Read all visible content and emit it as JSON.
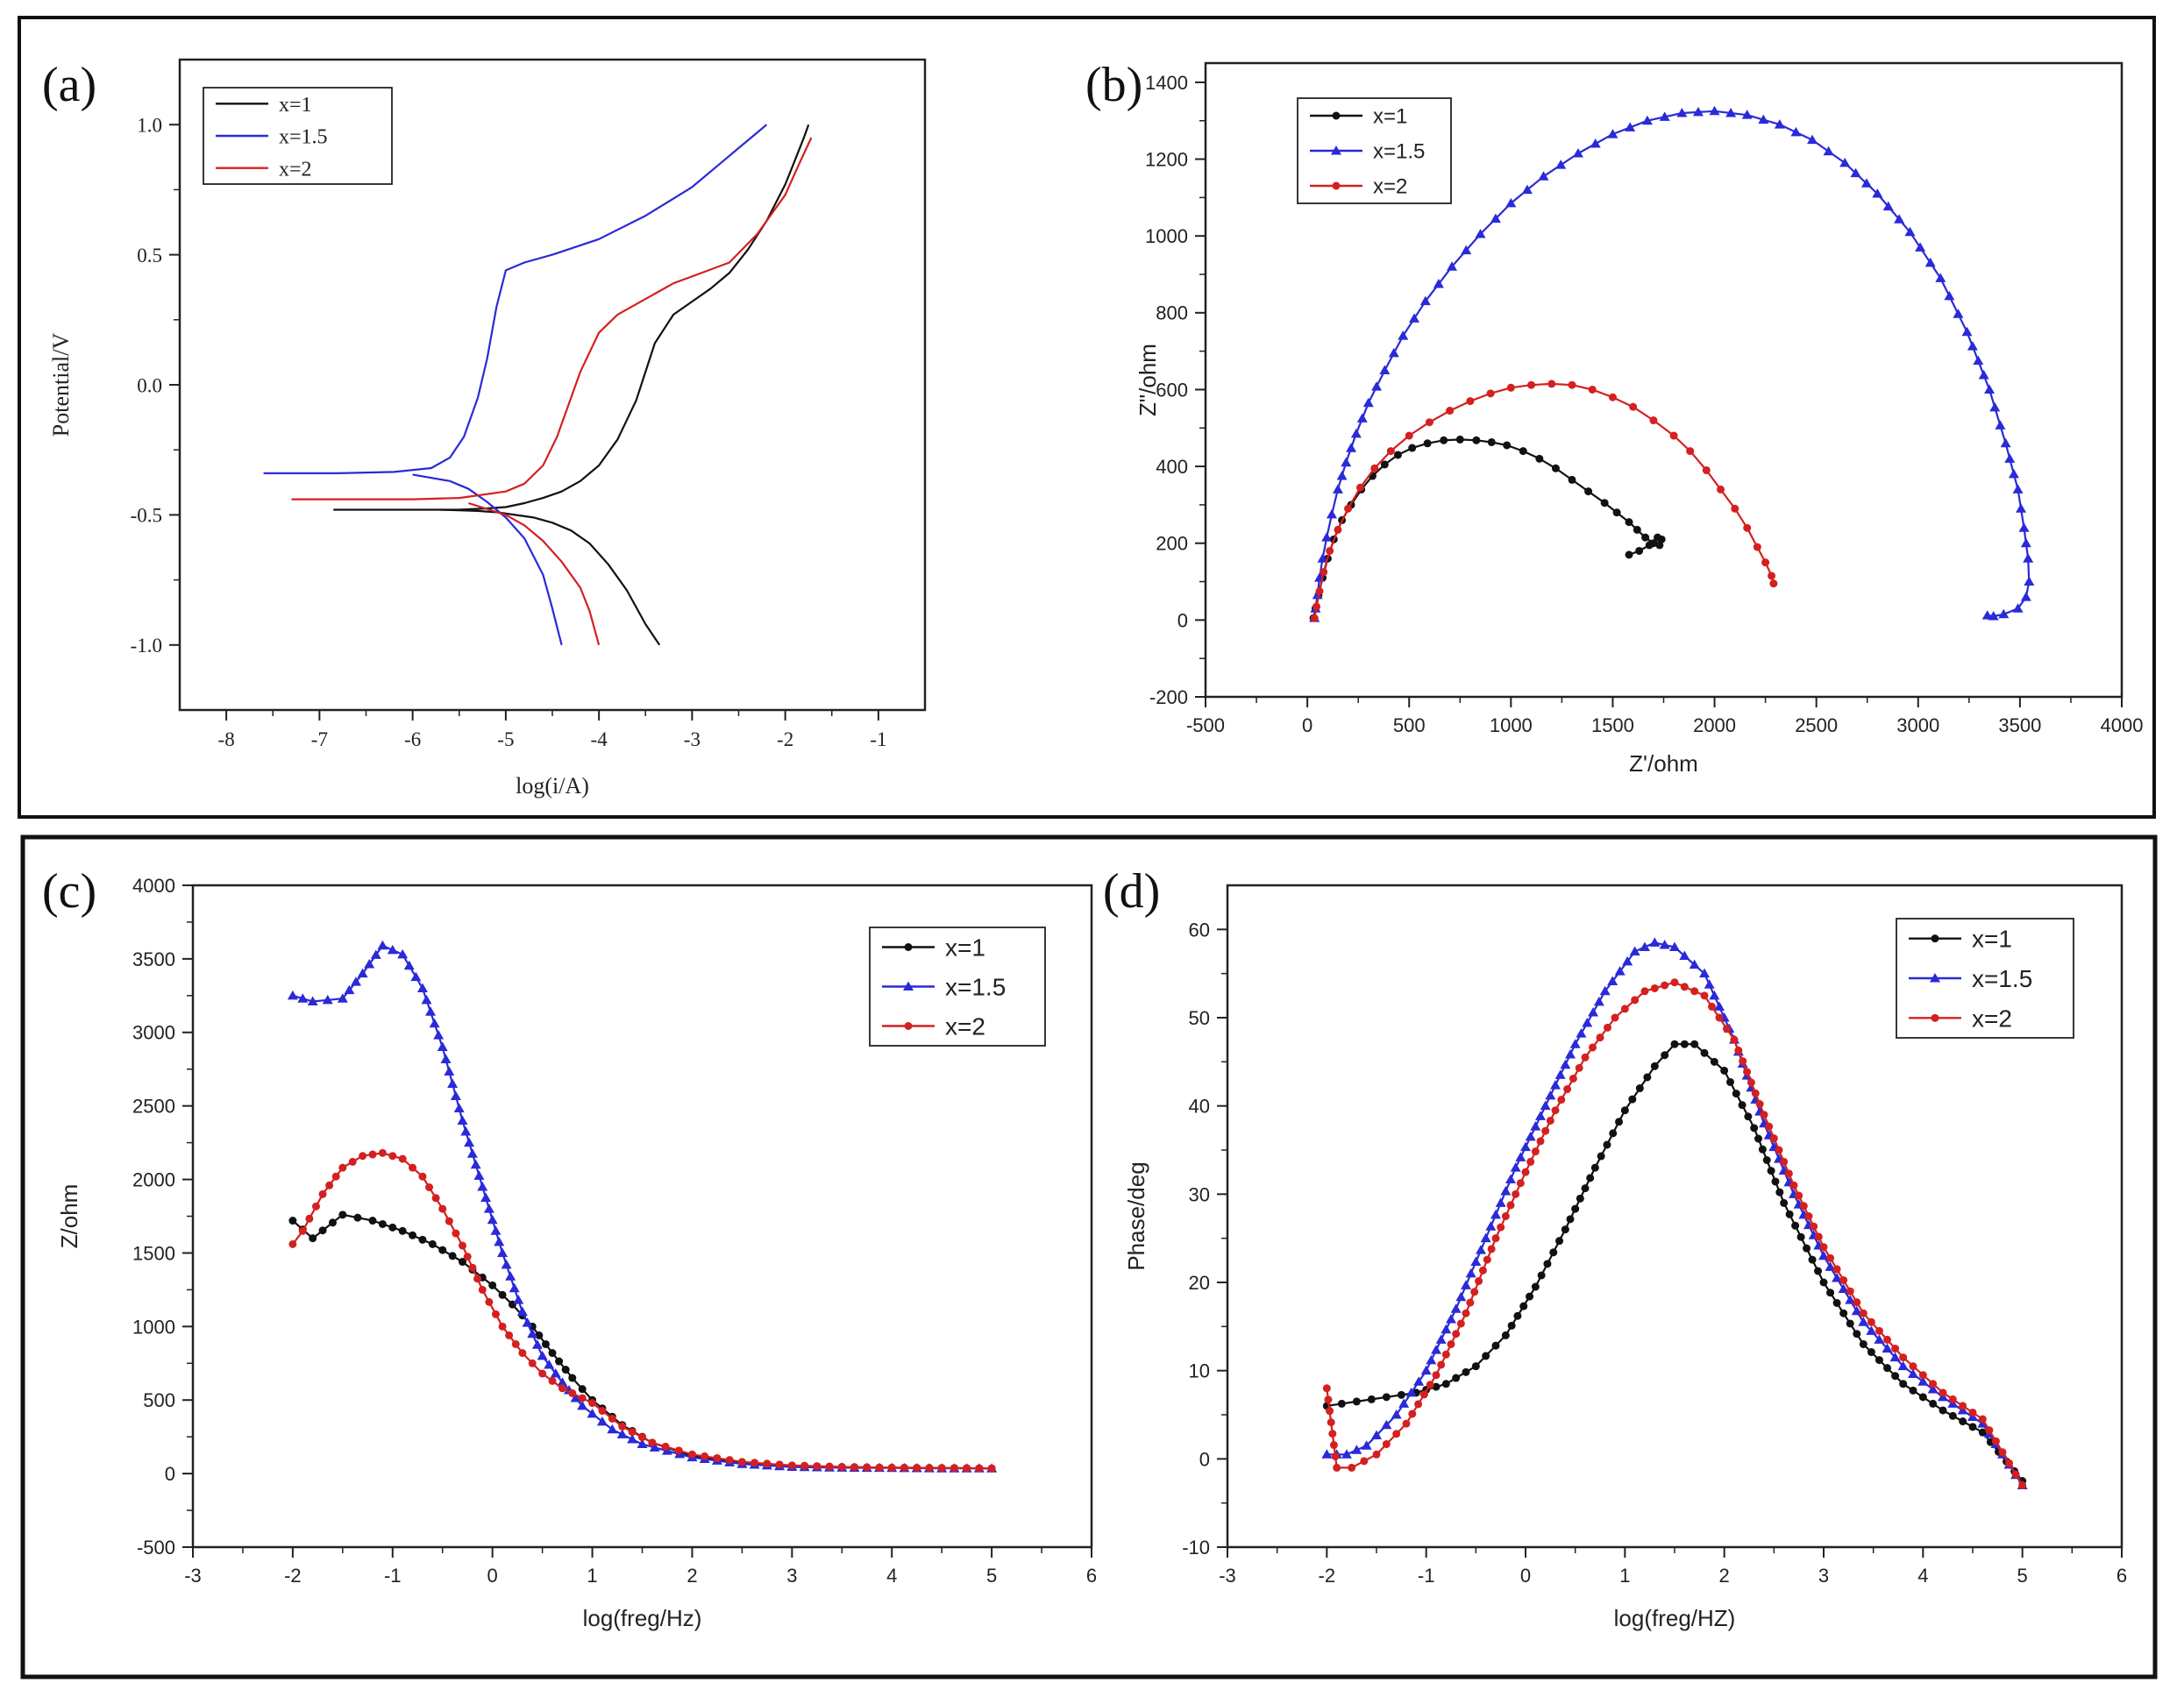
{
  "colors": {
    "x1": "#111111",
    "x15": "#2a2ad8",
    "x2": "#d42020",
    "axis": "#222222"
  },
  "chart_data": [
    {
      "id": "a",
      "type": "line",
      "panel_label": "(a)",
      "xlabel": "log(i/A)",
      "ylabel": "Potential/V",
      "xlim": [
        -8.5,
        -0.5
      ],
      "ylim": [
        -1.25,
        1.25
      ],
      "xticks": [
        -8,
        -7,
        -6,
        -5,
        -4,
        -3,
        -2,
        -1
      ],
      "xtick_labels": [
        "-8",
        "-7",
        "-6",
        "-5",
        "-4",
        "-3",
        "-2",
        "-1"
      ],
      "yticks": [
        -1.0,
        -0.5,
        0.0,
        0.5,
        1.0
      ],
      "ytick_labels": [
        "-1.0",
        "-0.5",
        "0.0",
        "0.5",
        "1.0"
      ],
      "legend_position": "top-left",
      "markers": false,
      "series": [
        {
          "name": "x=1",
          "color": "#111111",
          "marker": "none",
          "x": [
            -6.85,
            -6.0,
            -5.5,
            -5.2,
            -5.0,
            -4.8,
            -4.6,
            -4.4,
            -4.2,
            -4.0,
            -3.8,
            -3.6,
            -3.4,
            -3.2,
            -3.0,
            -2.8,
            -2.6,
            -2.4,
            -2.2,
            -2.0,
            -1.9,
            -1.8,
            -1.75,
            null,
            -5.7,
            -5.3,
            -5.1,
            -4.9,
            -4.7,
            -4.5,
            -4.3,
            -4.1,
            -3.9,
            -3.7,
            -3.5,
            -3.35
          ],
          "y": [
            -0.48,
            -0.48,
            -0.48,
            -0.475,
            -0.47,
            -0.455,
            -0.435,
            -0.41,
            -0.37,
            -0.31,
            -0.21,
            -0.06,
            0.16,
            0.27,
            0.32,
            0.37,
            0.43,
            0.52,
            0.63,
            0.77,
            0.86,
            0.95,
            1.0,
            null,
            -0.48,
            -0.485,
            -0.49,
            -0.5,
            -0.51,
            -0.53,
            -0.56,
            -0.61,
            -0.69,
            -0.79,
            -0.92,
            -1.0
          ]
        },
        {
          "name": "x=1.5",
          "color": "#2a2ad8",
          "marker": "none",
          "x": [
            -7.6,
            -6.8,
            -6.2,
            -5.8,
            -5.6,
            -5.45,
            -5.3,
            -5.2,
            -5.1,
            -5.0,
            -4.8,
            -4.5,
            -4.0,
            -3.5,
            -3.0,
            -2.7,
            -2.5,
            -2.3,
            -2.2,
            null,
            -6.0,
            -5.6,
            -5.4,
            -5.2,
            -5.0,
            -4.8,
            -4.6,
            -4.5,
            -4.4
          ],
          "y": [
            -0.34,
            -0.34,
            -0.335,
            -0.32,
            -0.28,
            -0.2,
            -0.05,
            0.1,
            0.3,
            0.44,
            0.47,
            0.5,
            0.56,
            0.65,
            0.76,
            0.85,
            0.91,
            0.97,
            1.0,
            null,
            -0.345,
            -0.37,
            -0.4,
            -0.45,
            -0.51,
            -0.59,
            -0.73,
            -0.86,
            -1.0
          ],
          "_note": ""
        },
        {
          "name": "x=2",
          "color": "#d42020",
          "marker": "none",
          "x": [
            -7.3,
            -6.5,
            -6.0,
            -5.5,
            -5.0,
            -4.8,
            -4.6,
            -4.45,
            -4.3,
            -4.2,
            -4.0,
            -3.8,
            -3.5,
            -3.2,
            -2.9,
            -2.6,
            -2.3,
            -2.0,
            -1.85,
            -1.72,
            null,
            -5.4,
            -5.0,
            -4.8,
            -4.6,
            -4.4,
            -4.2,
            -4.1,
            -4.0
          ],
          "y": [
            -0.44,
            -0.44,
            -0.44,
            -0.435,
            -0.41,
            -0.38,
            -0.31,
            -0.2,
            -0.05,
            0.05,
            0.2,
            0.27,
            0.33,
            0.39,
            0.43,
            0.47,
            0.58,
            0.73,
            0.85,
            0.95,
            null,
            -0.455,
            -0.5,
            -0.54,
            -0.6,
            -0.68,
            -0.78,
            -0.87,
            -1.0
          ]
        }
      ]
    },
    {
      "id": "b",
      "type": "scatter",
      "panel_label": "(b)",
      "xlabel": "Z'/ohm",
      "ylabel": "Z\"/ohm",
      "xlim": [
        -500,
        4000
      ],
      "ylim": [
        -200,
        1450
      ],
      "xticks": [
        -500,
        0,
        500,
        1000,
        1500,
        2000,
        2500,
        3000,
        3500,
        4000
      ],
      "xtick_labels": [
        "-500",
        "0",
        "500",
        "1000",
        "1500",
        "2000",
        "2500",
        "3000",
        "3500",
        "4000"
      ],
      "yticks": [
        -200,
        0,
        200,
        400,
        600,
        800,
        1000,
        1200,
        1400
      ],
      "ytick_labels": [
        "-200",
        "0",
        "200",
        "400",
        "600",
        "800",
        "1000",
        "1200",
        "1400"
      ],
      "legend_position": "top-left",
      "markers": true,
      "series": [
        {
          "name": "x=1",
          "color": "#111111",
          "marker": "circle",
          "x": [
            30,
            40,
            55,
            75,
            100,
            130,
            170,
            215,
            265,
            320,
            380,
            445,
            515,
            590,
            670,
            750,
            830,
            905,
            980,
            1060,
            1140,
            1220,
            1300,
            1380,
            1460,
            1520,
            1580,
            1620,
            1660,
            1700,
            1730,
            1740,
            1720,
            1680,
            1630,
            1580
          ],
          "y": [
            5,
            30,
            65,
            110,
            160,
            210,
            260,
            300,
            340,
            375,
            405,
            430,
            448,
            460,
            468,
            470,
            468,
            463,
            455,
            440,
            420,
            395,
            365,
            335,
            305,
            280,
            255,
            235,
            215,
            200,
            195,
            210,
            215,
            195,
            180,
            170
          ]
        },
        {
          "name": "x=1.5",
          "color": "#2a2ad8",
          "marker": "triangle",
          "x": [
            35,
            40,
            50,
            60,
            75,
            95,
            120,
            150,
            190,
            240,
            300,
            380,
            470,
            580,
            710,
            850,
            1000,
            1160,
            1330,
            1500,
            1670,
            1840,
            2000,
            2160,
            2320,
            2480,
            2640,
            2800,
            2960,
            3110,
            3240,
            3350,
            3430,
            3490,
            3520,
            3540,
            3545,
            3530,
            3490,
            3420,
            3370,
            3340
          ],
          "y": [
            5,
            30,
            65,
            110,
            160,
            215,
            275,
            340,
            410,
            485,
            565,
            650,
            740,
            830,
            920,
            1005,
            1085,
            1155,
            1215,
            1265,
            1300,
            1320,
            1325,
            1315,
            1290,
            1250,
            1190,
            1110,
            1010,
            890,
            750,
            600,
            460,
            340,
            240,
            160,
            100,
            60,
            30,
            15,
            10,
            12
          ]
        },
        {
          "name": "x=2",
          "color": "#d42020",
          "marker": "circle",
          "x": [
            35,
            45,
            60,
            80,
            110,
            150,
            200,
            260,
            330,
            410,
            500,
            600,
            700,
            800,
            900,
            1000,
            1100,
            1200,
            1300,
            1400,
            1500,
            1600,
            1700,
            1800,
            1880,
            1960,
            2030,
            2100,
            2160,
            2210,
            2250,
            2280,
            2290
          ],
          "y": [
            5,
            35,
            75,
            125,
            180,
            235,
            290,
            345,
            395,
            440,
            480,
            515,
            545,
            570,
            590,
            605,
            612,
            615,
            612,
            600,
            580,
            555,
            520,
            480,
            440,
            390,
            340,
            290,
            240,
            190,
            150,
            115,
            95
          ]
        }
      ]
    },
    {
      "id": "c",
      "type": "scatter",
      "panel_label": "(c)",
      "xlabel": "log(freg/Hz)",
      "ylabel": "Z/ohm",
      "xlim": [
        -3,
        6
      ],
      "ylim": [
        -500,
        4000
      ],
      "xticks": [
        -3,
        -2,
        -1,
        0,
        1,
        2,
        3,
        4,
        5,
        6
      ],
      "xtick_labels": [
        "-3",
        "-2",
        "-1",
        "0",
        "1",
        "2",
        "3",
        "4",
        "5",
        "6"
      ],
      "yticks": [
        -500,
        0,
        500,
        1000,
        1500,
        2000,
        2500,
        3000,
        3500,
        4000
      ],
      "ytick_labels": [
        "-500",
        "0",
        "500",
        "1000",
        "1500",
        "2000",
        "2500",
        "3000",
        "3500",
        "4000"
      ],
      "legend_position": "top-right",
      "markers": true,
      "series": [
        {
          "name": "x=1",
          "color": "#111111",
          "marker": "circle",
          "x": [
            -2.0,
            -1.8,
            -1.5,
            -1.2,
            -0.9,
            -0.6,
            -0.3,
            0.0,
            0.2,
            0.4,
            0.6,
            0.8,
            1.0,
            1.3,
            1.6,
            2.0,
            2.5,
            3.0,
            3.5,
            4.0,
            4.5,
            5.0
          ],
          "y": [
            1720,
            1600,
            1760,
            1720,
            1650,
            1560,
            1440,
            1280,
            1150,
            1000,
            820,
            650,
            500,
            330,
            210,
            120,
            75,
            55,
            45,
            40,
            38,
            35
          ]
        },
        {
          "name": "x=1.5",
          "color": "#2a2ad8",
          "marker": "triangle",
          "x": [
            -2.0,
            -1.8,
            -1.5,
            -1.3,
            -1.1,
            -0.9,
            -0.7,
            -0.5,
            -0.3,
            -0.1,
            0.1,
            0.3,
            0.5,
            0.7,
            0.9,
            1.2,
            1.5,
            2.0,
            2.5,
            3.0,
            3.5,
            4.0,
            4.5,
            5.0
          ],
          "y": [
            3250,
            3210,
            3230,
            3400,
            3590,
            3530,
            3300,
            2900,
            2400,
            1950,
            1500,
            1100,
            800,
            620,
            460,
            300,
            200,
            110,
            65,
            45,
            40,
            38,
            35,
            35
          ]
        },
        {
          "name": "x=2",
          "color": "#d42020",
          "marker": "circle",
          "x": [
            -2.0,
            -1.9,
            -1.7,
            -1.5,
            -1.3,
            -1.1,
            -0.9,
            -0.7,
            -0.5,
            -0.3,
            -0.1,
            0.1,
            0.3,
            0.5,
            0.7,
            1.0,
            1.3,
            1.6,
            2.0,
            2.5,
            3.0,
            3.5,
            4.0,
            4.5,
            5.0
          ],
          "y": [
            1560,
            1650,
            1900,
            2080,
            2160,
            2180,
            2140,
            2020,
            1800,
            1550,
            1250,
            1000,
            820,
            680,
            580,
            480,
            320,
            210,
            130,
            80,
            55,
            45,
            40,
            38,
            35
          ]
        }
      ]
    },
    {
      "id": "d",
      "type": "scatter",
      "panel_label": "(d)",
      "xlabel": "log(freg/HZ)",
      "ylabel": "Phase/deg",
      "xlim": [
        -3,
        6
      ],
      "ylim": [
        -10,
        65
      ],
      "xticks": [
        -3,
        -2,
        -1,
        0,
        1,
        2,
        3,
        4,
        5,
        6
      ],
      "xtick_labels": [
        "-3",
        "-2",
        "-1",
        "0",
        "1",
        "2",
        "3",
        "4",
        "5",
        "6"
      ],
      "yticks": [
        -10,
        0,
        10,
        20,
        30,
        40,
        50,
        60
      ],
      "ytick_labels": [
        "-10",
        "0",
        "10",
        "20",
        "30",
        "40",
        "50",
        "60"
      ],
      "legend_position": "top-right",
      "markers": true,
      "series": [
        {
          "name": "x=1",
          "color": "#111111",
          "marker": "circle",
          "x": [
            -2.0,
            -1.7,
            -1.4,
            -1.1,
            -0.8,
            -0.5,
            -0.2,
            0.1,
            0.4,
            0.7,
            1.0,
            1.3,
            1.5,
            1.7,
            2.0,
            2.3,
            2.6,
            3.0,
            3.4,
            3.8,
            4.2,
            4.6,
            5.0
          ],
          "y": [
            6,
            6.5,
            7,
            7.5,
            8.5,
            10.5,
            14,
            19.5,
            26,
            33,
            39.5,
            44.5,
            47,
            47,
            44,
            37.5,
            29,
            20,
            13,
            8.5,
            5.5,
            3,
            -2.5
          ]
        },
        {
          "name": "x=1.5",
          "color": "#2a2ad8",
          "marker": "triangle",
          "x": [
            -2.0,
            -1.8,
            -1.6,
            -1.3,
            -1.0,
            -0.7,
            -0.4,
            -0.1,
            0.2,
            0.5,
            0.8,
            1.1,
            1.3,
            1.5,
            1.8,
            2.1,
            2.4,
            2.7,
            3.0,
            3.4,
            3.8,
            4.2,
            4.6,
            5.0
          ],
          "y": [
            0.5,
            0.5,
            1.5,
            5,
            10,
            17,
            25,
            33,
            40,
            47,
            53,
            57.5,
            58.5,
            58,
            55,
            47.5,
            38,
            30,
            23,
            15.5,
            10.5,
            7,
            4,
            -3
          ]
        },
        {
          "name": "x=2",
          "color": "#d42020",
          "marker": "circle",
          "x": [
            -2.0,
            -1.9,
            -1.75,
            -1.5,
            -1.2,
            -0.9,
            -0.6,
            -0.3,
            0.0,
            0.3,
            0.6,
            0.9,
            1.2,
            1.5,
            1.8,
            2.1,
            2.4,
            2.7,
            3.0,
            3.4,
            3.8,
            4.2,
            4.6,
            5.0
          ],
          "y": [
            8,
            -1,
            -1,
            0.5,
            4,
            9.5,
            16.5,
            25,
            32.5,
            39.5,
            45.5,
            50,
            53,
            54,
            52.5,
            47.5,
            39,
            31,
            24,
            16.5,
            11.5,
            7.5,
            4.5,
            -3
          ]
        }
      ]
    }
  ]
}
